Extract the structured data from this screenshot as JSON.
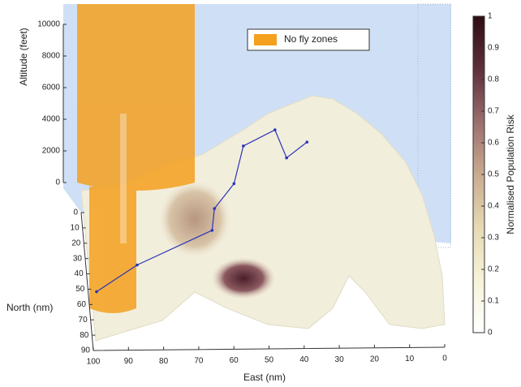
{
  "chart_data": {
    "type": "surface3d",
    "legend": "No fly zones",
    "no_fly_color": "#f5a01e",
    "x_label": "East (nm)",
    "y_label": "North (nm)",
    "z_label": "Altitude (feet)",
    "xlim": [
      100,
      0
    ],
    "xticks": [
      100,
      90,
      80,
      70,
      60,
      50,
      40,
      30,
      20,
      10,
      0
    ],
    "ylim": [
      0,
      90
    ],
    "yticks": [
      0,
      10,
      20,
      30,
      40,
      50,
      60,
      70,
      80,
      90
    ],
    "zlim": [
      0,
      10000
    ],
    "zticks": [
      0,
      2000,
      4000,
      6000,
      8000,
      10000
    ],
    "colorbar": {
      "label": "Normalised Population Risk",
      "clim": [
        0,
        1
      ],
      "ticks": [
        0,
        0.1,
        0.2,
        0.3,
        0.4,
        0.5,
        0.6,
        0.7,
        0.8,
        0.9,
        1
      ],
      "colormap": [
        "#ffffff",
        "#f6f3d8",
        "#e6d9b4",
        "#c9ab8f",
        "#9b6e6e",
        "#5e2f3a",
        "#2e0d14"
      ]
    },
    "flight_path": {
      "color": "#2b35b8",
      "east": [
        98,
        86,
        64,
        63,
        57,
        54,
        45,
        42,
        36
      ],
      "north": [
        62,
        50,
        33,
        24,
        13,
        4,
        4,
        12,
        7
      ],
      "altitude": [
        1000,
        1500,
        2000,
        2500,
        3000,
        4500,
        5500,
        4500,
        5000
      ]
    }
  }
}
